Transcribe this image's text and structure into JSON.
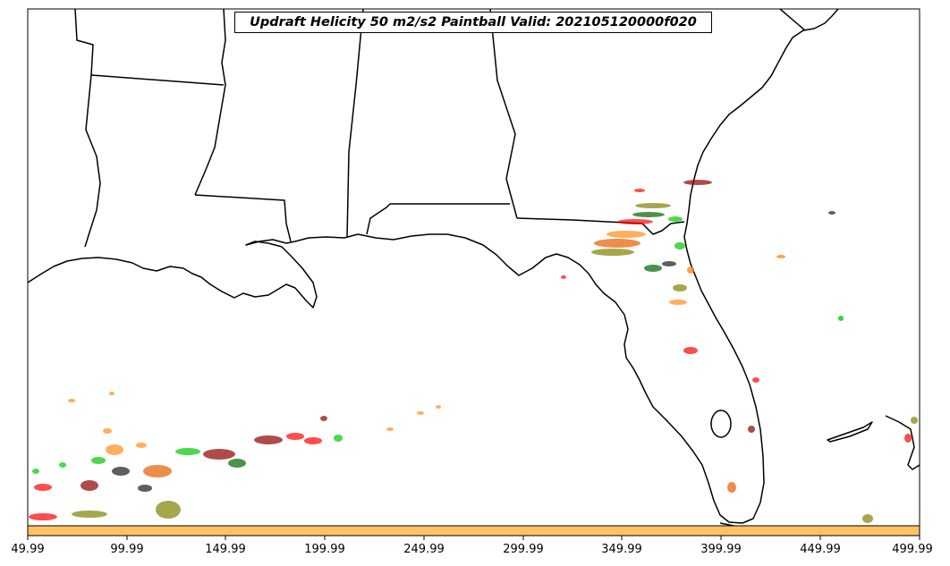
{
  "title": "Updraft Helicity 50 m2/s2 Paintball Valid: 202105120000f020",
  "xaxis": {
    "ticks": [
      "49.99",
      "99.99",
      "149.99",
      "199.99",
      "249.99",
      "299.99",
      "349.99",
      "399.99",
      "449.99",
      "499.99"
    ]
  },
  "colors": {
    "frame": "#000000",
    "coastline": "#000000",
    "colorbar": "#ffc266",
    "member_palette": [
      "#ff0000",
      "#ff8c1a",
      "#808000",
      "#00c800",
      "#8b0000",
      "#006400",
      "#1a1a1a",
      "#e65c00"
    ]
  },
  "colorbar": {
    "fill_color": "#ffc266"
  },
  "map": {
    "region": "Southeastern United States and Gulf of Mexico",
    "features": [
      "state-borders",
      "coastlines",
      "paintball-swaths"
    ]
  }
}
